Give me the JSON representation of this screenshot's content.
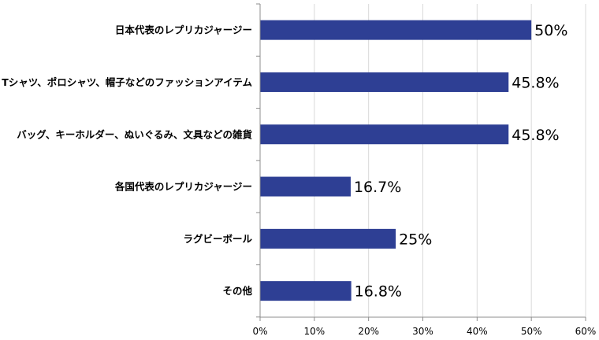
{
  "chart_data": {
    "type": "bar",
    "orientation": "horizontal",
    "title": "",
    "xlabel": "",
    "ylabel": "",
    "categories": [
      "日本代表のレプリカジャージー",
      "Tシャツ、ポロシャツ、帽子などのファッションアイテム",
      "バッグ、キーホルダー、ぬいぐるみ、文具などの雑貨",
      "各国代表のレプリカジャージー",
      "ラグビーボール",
      "その他"
    ],
    "values": [
      50,
      45.8,
      45.8,
      16.7,
      25,
      16.8
    ],
    "value_labels": [
      "50%",
      "45.8%",
      "45.8%",
      "16.7%",
      "25%",
      "16.8%"
    ],
    "xlim": [
      0,
      60
    ],
    "x_ticks": [
      0,
      10,
      20,
      30,
      40,
      50,
      60
    ],
    "x_tick_labels": [
      "0%",
      "10%",
      "20%",
      "30%",
      "40%",
      "50%",
      "60%"
    ],
    "grid": "vertical",
    "legend": "none",
    "colors": {
      "bar": "#2E3F94",
      "grid": "#D9D9D9",
      "axis": "#8C8C8C"
    }
  }
}
